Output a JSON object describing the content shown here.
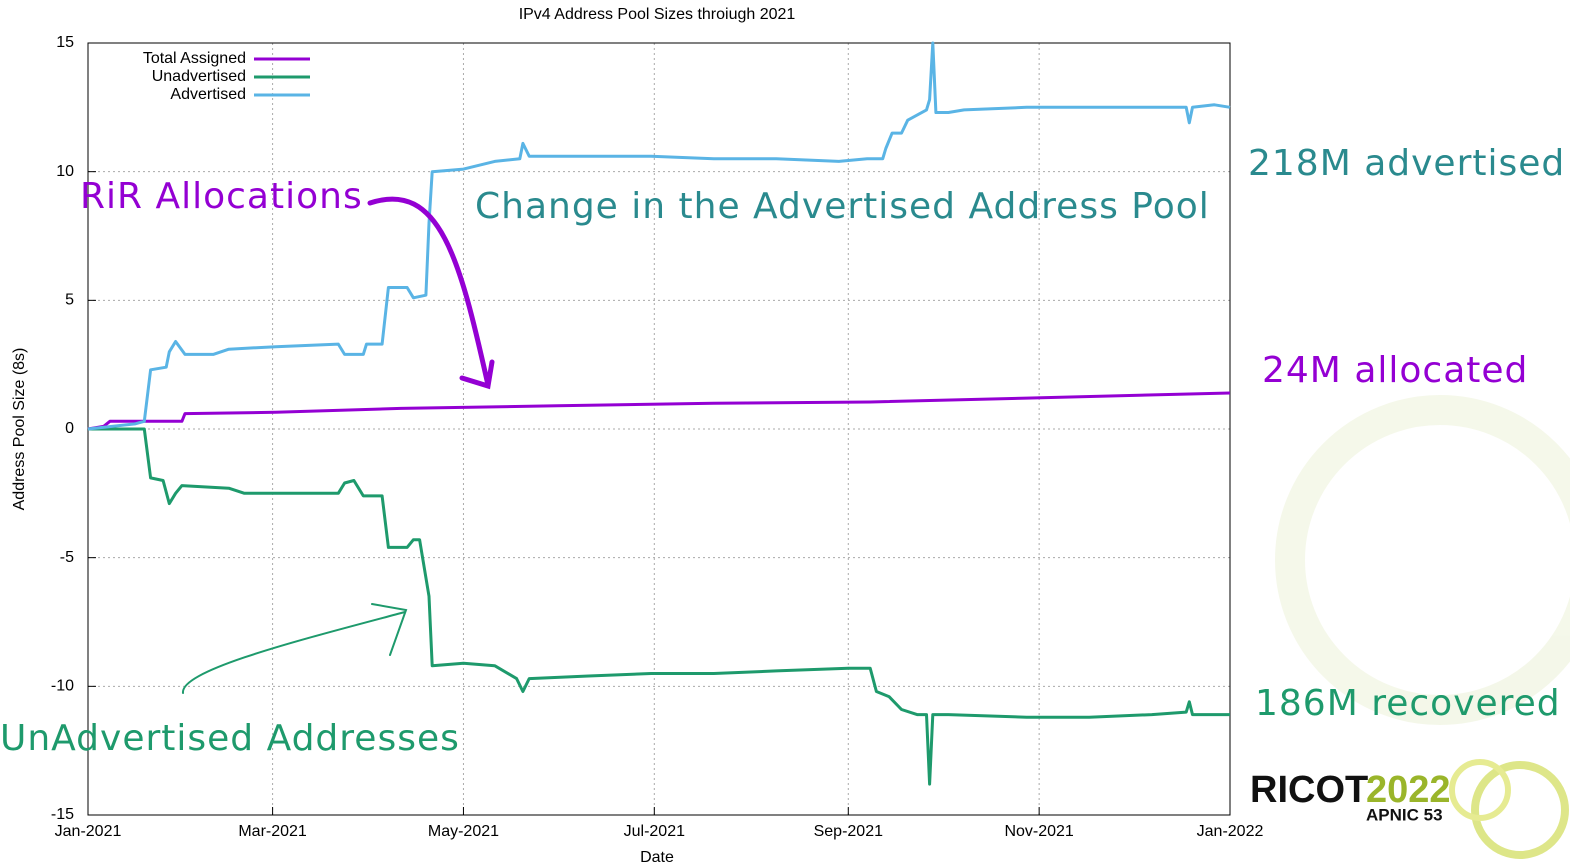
{
  "chart_data": {
    "type": "line",
    "title": "IPv4 Address Pool Sizes throiugh 2021",
    "x_label": "Date",
    "y_label": "Address Pool Size (8s)",
    "xlim": [
      0,
      365
    ],
    "xticks": [
      {
        "value": 0,
        "label": "Jan-2021"
      },
      {
        "value": 59,
        "label": "Mar-2021"
      },
      {
        "value": 120,
        "label": "May-2021"
      },
      {
        "value": 181,
        "label": "Jul-2021"
      },
      {
        "value": 243,
        "label": "Sep-2021"
      },
      {
        "value": 304,
        "label": "Nov-2021"
      },
      {
        "value": 365,
        "label": "Jan-2022"
      }
    ],
    "ylim": [
      -15,
      15
    ],
    "yticks": [
      -15,
      -10,
      -5,
      0,
      5,
      10,
      15
    ],
    "grid": true,
    "legend": "upper-left",
    "series": [
      {
        "name": "Total Assigned",
        "color": "#9400d3",
        "x": [
          0,
          5,
          7,
          30,
          31,
          60,
          100,
          150,
          200,
          250,
          300,
          365
        ],
        "values": [
          0,
          0.1,
          0.3,
          0.3,
          0.6,
          0.65,
          0.8,
          0.9,
          1.0,
          1.05,
          1.2,
          1.4
        ]
      },
      {
        "name": "Unadvertised",
        "color": "#1e9a6c",
        "x": [
          0,
          18,
          20,
          24,
          26,
          28,
          30,
          45,
          50,
          80,
          82,
          85,
          88,
          94,
          96,
          102,
          104,
          106,
          109,
          110,
          120,
          130,
          137,
          139,
          141,
          160,
          180,
          200,
          220,
          243,
          250,
          252,
          256,
          260,
          265,
          268,
          269,
          270,
          275,
          300,
          320,
          340,
          351,
          352,
          353,
          365
        ],
        "values": [
          0,
          0,
          -1.9,
          -2.0,
          -2.9,
          -2.5,
          -2.2,
          -2.3,
          -2.5,
          -2.5,
          -2.1,
          -2.0,
          -2.6,
          -2.6,
          -4.6,
          -4.6,
          -4.3,
          -4.3,
          -6.5,
          -9.2,
          -9.1,
          -9.2,
          -9.7,
          -10.2,
          -9.7,
          -9.6,
          -9.5,
          -9.5,
          -9.4,
          -9.3,
          -9.3,
          -10.2,
          -10.4,
          -10.9,
          -11.1,
          -11.1,
          -13.8,
          -11.1,
          -11.1,
          -11.2,
          -11.2,
          -11.1,
          -11.0,
          -10.6,
          -11.1,
          -11.1
        ]
      },
      {
        "name": "Advertised",
        "color": "#5ab4e5",
        "x": [
          0,
          15,
          18,
          20,
          25,
          26,
          28,
          31,
          40,
          45,
          60,
          80,
          82,
          88,
          89,
          94,
          96,
          102,
          104,
          108,
          109,
          110,
          120,
          130,
          138,
          139,
          141,
          160,
          180,
          200,
          220,
          240,
          249,
          254,
          255,
          257,
          260,
          262,
          265,
          268,
          269,
          270,
          271,
          275,
          280,
          300,
          320,
          340,
          351,
          352,
          353,
          360,
          365
        ],
        "values": [
          0,
          0.2,
          0.3,
          2.3,
          2.4,
          3.0,
          3.4,
          2.9,
          2.9,
          3.1,
          3.2,
          3.3,
          2.9,
          2.9,
          3.3,
          3.3,
          5.5,
          5.5,
          5.1,
          5.2,
          8.0,
          10.0,
          10.1,
          10.4,
          10.5,
          11.1,
          10.6,
          10.6,
          10.6,
          10.5,
          10.5,
          10.4,
          10.5,
          10.5,
          10.9,
          11.5,
          11.5,
          12.0,
          12.2,
          12.4,
          12.8,
          15.0,
          12.3,
          12.3,
          12.4,
          12.5,
          12.5,
          12.5,
          12.5,
          11.9,
          12.5,
          12.6,
          12.5
        ]
      }
    ],
    "annotations": [
      "RiR Allocations",
      "Change in the Advertised Address Pool",
      "218M advertised",
      "24M allocated",
      "186M recovered",
      "UnAdvertised Addresses"
    ],
    "logo": [
      "RICOT",
      "2022",
      "APNIC 53"
    ]
  }
}
